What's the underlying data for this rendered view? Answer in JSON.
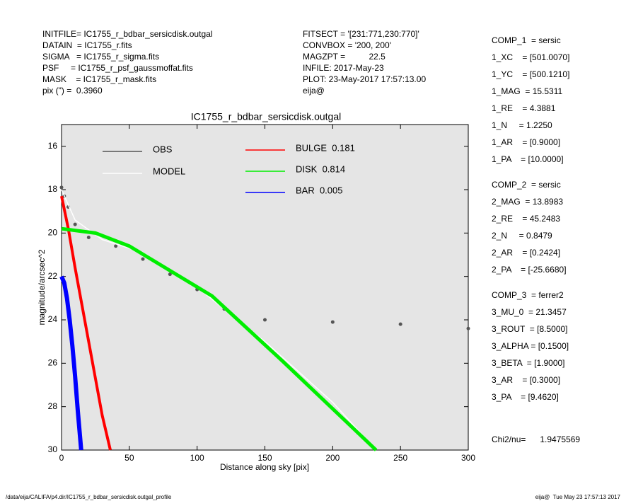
{
  "header": {
    "left": [
      "INITFILE= IC1755_r_bdbar_sersicdisk.outgal",
      "DATAIN  = IC1755_r.fits",
      "SIGMA   = IC1755_r_sigma.fits",
      "PSF     = IC1755_r_psf_gaussmoffat.fits",
      "MASK    = IC1755_r_mask.fits",
      "pix (\") =  0.3960"
    ],
    "middle": [
      "FITSECT = '[231:771,230:770]'",
      "CONVBOX = '200, 200'",
      "MAGZPT =          22.5",
      "INFILE: 2017-May-23",
      "PLOT: 23-May-2017 17:57:13.00",
      "eija@"
    ]
  },
  "components": [
    [
      "COMP_1  = sersic",
      "1_XC    = [501.0070]",
      "1_YC    = [500.1210]",
      "1_MAG  = 15.5311",
      "1_RE    = 4.3881",
      "1_N     = 1.2250",
      "1_AR    = [0.9000]",
      "1_PA    = [10.0000]"
    ],
    [
      "COMP_2  = sersic",
      "2_MAG  = 13.8983",
      "2_RE    = 45.2483",
      "2_N     = 0.8479",
      "2_AR    = [0.2424]",
      "2_PA    = [-25.6680]"
    ],
    [
      "COMP_3  = ferrer2",
      "3_MU_0  = 21.3457",
      "3_ROUT  = [8.5000]",
      "3_ALPHA = [0.1500]",
      "3_BETA  = [1.9000]",
      "3_AR    = [0.3000]",
      "3_PA    = [9.4620]"
    ],
    [
      "Chi2/nu=      1.9475569"
    ]
  ],
  "footer": {
    "left": "/data/eija/CALIFA/p4.dir/IC1755_r_bdbar_sersicdisk.outgal_profile",
    "right": "eija@  Tue May 23 17:57:13 2017"
  },
  "chart_data": {
    "type": "scatter",
    "title": "IC1755_r_bdbar_sersicdisk.outgal",
    "xlabel": "Distance along sky [pix]",
    "ylabel": "magnitude/arcsec^2",
    "xlim": [
      0,
      300
    ],
    "ylim": [
      30,
      15
    ],
    "xticks": [
      0,
      50,
      100,
      150,
      200,
      250,
      300
    ],
    "yticks": [
      16,
      18,
      20,
      22,
      24,
      26,
      28,
      30
    ],
    "series": [
      {
        "name": "OBS",
        "color": "#555555",
        "style": "points",
        "x": [
          0,
          2,
          5,
          10,
          20,
          40,
          60,
          80,
          100,
          120,
          150,
          200,
          250,
          300
        ],
        "y": [
          17.9,
          18.3,
          18.8,
          19.6,
          20.2,
          20.6,
          21.2,
          21.9,
          22.6,
          23.5,
          24.0,
          24.1,
          24.2,
          24.4
        ]
      },
      {
        "name": "MODEL",
        "color": "#ffffff",
        "style": "line",
        "x": [
          0,
          10,
          30,
          60,
          100,
          150,
          200,
          232
        ],
        "y": [
          18.0,
          19.4,
          20.3,
          20.9,
          22.5,
          25.0,
          27.8,
          30
        ]
      },
      {
        "name": "BULGE  0.181",
        "color": "#ff0000",
        "style": "line",
        "x": [
          0,
          5,
          10,
          15,
          20,
          25,
          30,
          36
        ],
        "y": [
          18.3,
          19.8,
          21.6,
          23.3,
          25.0,
          26.7,
          28.4,
          30
        ]
      },
      {
        "name": "DISK  0.814",
        "color": "#00ee00",
        "style": "line",
        "x": [
          0,
          25,
          50,
          111,
          163,
          232
        ],
        "y": [
          19.8,
          20.0,
          20.6,
          22.9,
          25.9,
          30
        ]
      },
      {
        "name": "BAR  0.005",
        "color": "#0000ff",
        "style": "line",
        "x": [
          0,
          2,
          4,
          6,
          8,
          10,
          12,
          14.5
        ],
        "y": [
          22.0,
          22.3,
          23.0,
          24.0,
          25.2,
          26.6,
          28.2,
          30
        ]
      }
    ]
  }
}
